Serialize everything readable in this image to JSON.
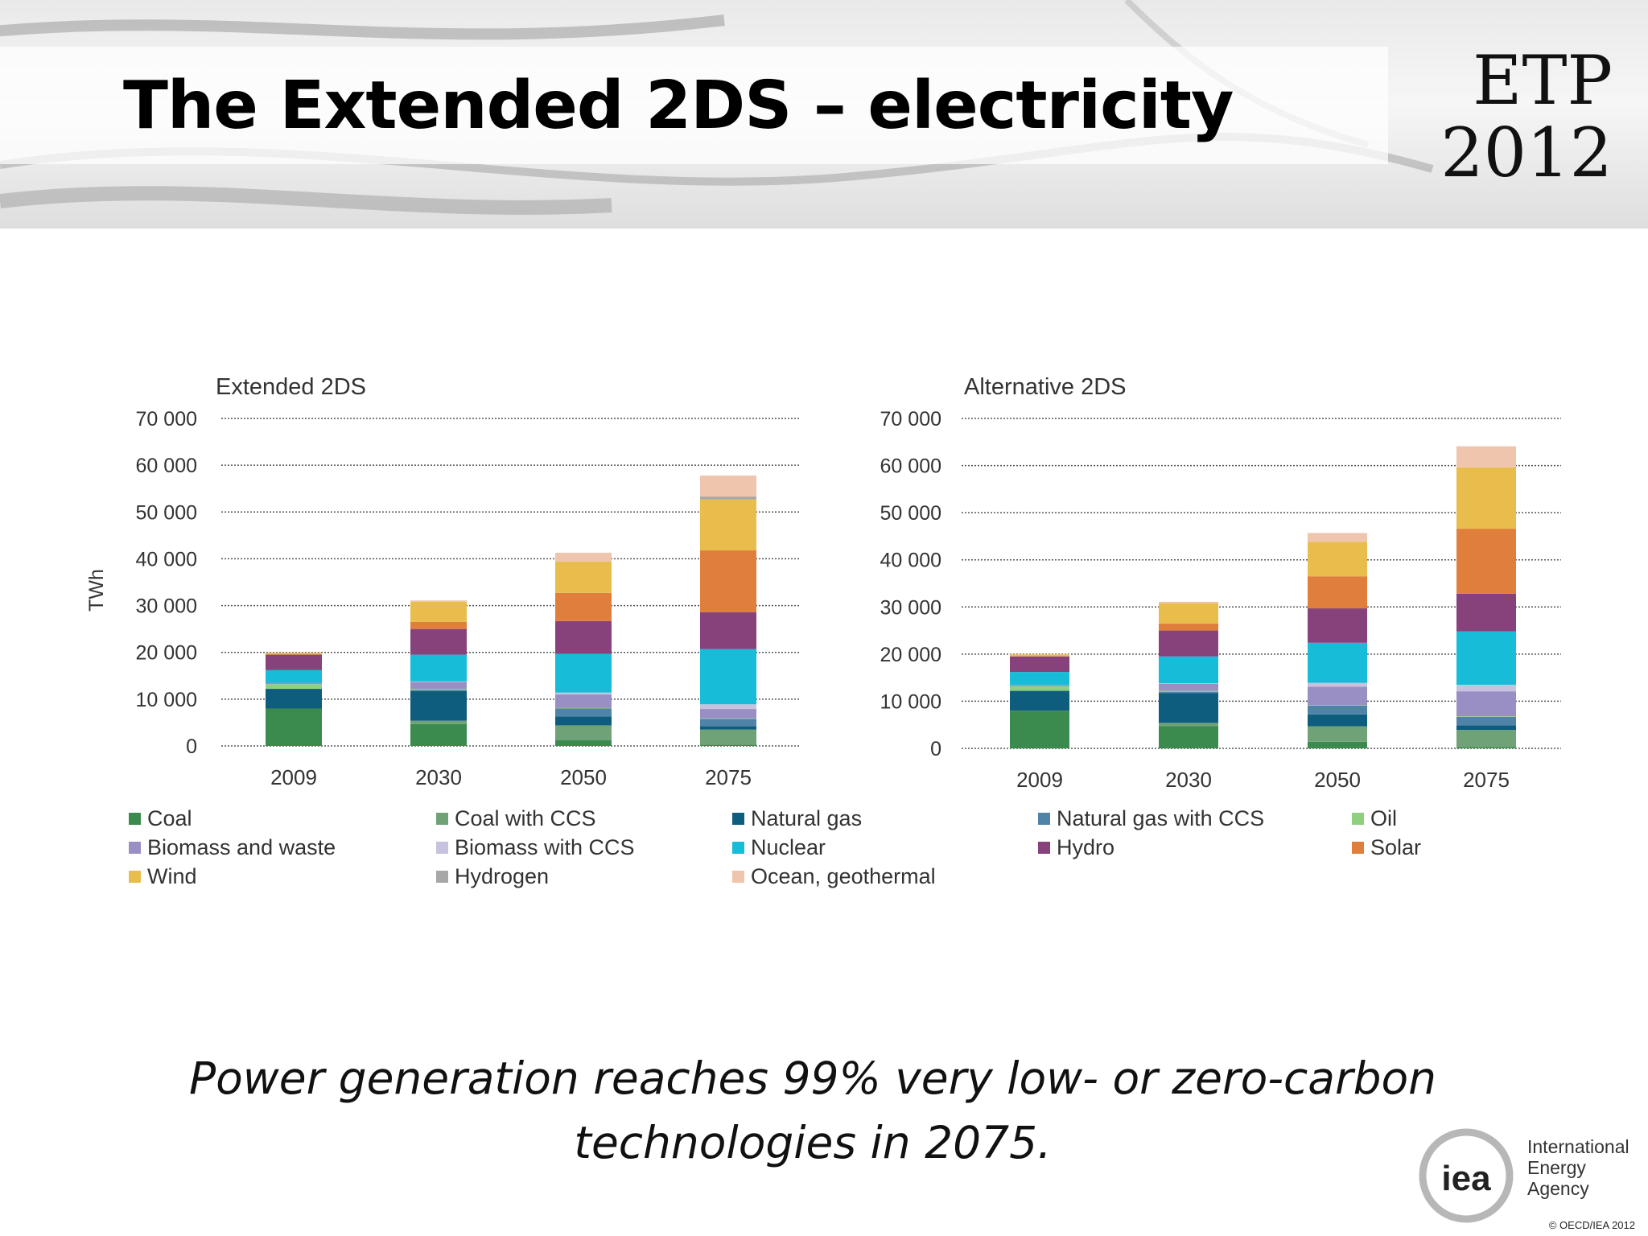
{
  "slide": {
    "title": "The Extended 2DS – electricity",
    "etp_line1": "ETP",
    "etp_line2": "2012",
    "caption_line1": "Power generation reaches 99% very low- or zero-carbon",
    "caption_line2": "technologies in 2075.",
    "iea_logo_text": "iea",
    "iea_name_line1": "International",
    "iea_name_line2": "Energy Agency",
    "copyright": "© OECD/IEA 2012"
  },
  "chart_data": [
    {
      "type": "bar",
      "stacked": true,
      "title": "Extended 2DS",
      "xlabel": "",
      "ylabel": "TWh",
      "ylim": [
        0,
        70000
      ],
      "yticks": [
        0,
        10000,
        20000,
        30000,
        40000,
        50000,
        60000,
        70000
      ],
      "ytick_labels": [
        "0",
        "10 000",
        "20 000",
        "30 000",
        "40 000",
        "50 000",
        "60 000",
        "70 000"
      ],
      "grid": true,
      "categories": [
        "2009",
        "2030",
        "2050",
        "2075"
      ],
      "series": [
        {
          "name": "Coal",
          "color": "#3c8b4e",
          "values": [
            8000,
            4700,
            1200,
            300
          ]
        },
        {
          "name": "Coal with CCS",
          "color": "#6fa377",
          "values": [
            0,
            700,
            3200,
            3200
          ]
        },
        {
          "name": "Natural gas",
          "color": "#0e5c7e",
          "values": [
            4200,
            6300,
            1900,
            700
          ]
        },
        {
          "name": "Natural gas with CCS",
          "color": "#4f84a8",
          "values": [
            0,
            300,
            1700,
            1600
          ]
        },
        {
          "name": "Oil",
          "color": "#8fd07f",
          "values": [
            1000,
            200,
            100,
            100
          ]
        },
        {
          "name": "Biomass and waste",
          "color": "#9a8fc4",
          "values": [
            300,
            1500,
            2900,
            2000
          ]
        },
        {
          "name": "Biomass with CCS",
          "color": "#c7c3de",
          "values": [
            0,
            100,
            400,
            1000
          ]
        },
        {
          "name": "Nuclear",
          "color": "#16bcd8",
          "values": [
            2700,
            5700,
            8300,
            11800
          ]
        },
        {
          "name": "Hydro",
          "color": "#87427b",
          "values": [
            3300,
            5500,
            7000,
            7900
          ]
        },
        {
          "name": "Solar",
          "color": "#df7f3b",
          "values": [
            100,
            1500,
            6000,
            13200
          ]
        },
        {
          "name": "Wind",
          "color": "#e9bd4b",
          "values": [
            300,
            4300,
            6700,
            10900
          ]
        },
        {
          "name": "Hydrogen",
          "color": "#a7a7a7",
          "values": [
            0,
            0,
            0,
            600
          ]
        },
        {
          "name": "Ocean, geothermal",
          "color": "#efc5ae",
          "values": [
            100,
            300,
            1900,
            4500
          ]
        }
      ]
    },
    {
      "type": "bar",
      "stacked": true,
      "title": "Alternative 2DS",
      "xlabel": "",
      "ylabel": "",
      "ylim": [
        0,
        70000
      ],
      "yticks": [
        0,
        10000,
        20000,
        30000,
        40000,
        50000,
        60000,
        70000
      ],
      "ytick_labels": [
        "0",
        "10 000",
        "20 000",
        "30 000",
        "40 000",
        "50 000",
        "60 000",
        "70 000"
      ],
      "grid": true,
      "categories": [
        "2009",
        "2030",
        "2050",
        "2075"
      ],
      "series": [
        {
          "name": "Coal",
          "color": "#3c8b4e",
          "values": [
            8000,
            4700,
            1400,
            300
          ]
        },
        {
          "name": "Coal with CCS",
          "color": "#6fa377",
          "values": [
            0,
            700,
            3300,
            3600
          ]
        },
        {
          "name": "Natural gas",
          "color": "#0e5c7e",
          "values": [
            4200,
            6300,
            2500,
            1000
          ]
        },
        {
          "name": "Natural gas with CCS",
          "color": "#4f84a8",
          "values": [
            0,
            300,
            1900,
            1800
          ]
        },
        {
          "name": "Oil",
          "color": "#8fd07f",
          "values": [
            1000,
            200,
            100,
            100
          ]
        },
        {
          "name": "Biomass and waste",
          "color": "#9a8fc4",
          "values": [
            300,
            1500,
            3900,
            5300
          ]
        },
        {
          "name": "Biomass with CCS",
          "color": "#c7c3de",
          "values": [
            0,
            100,
            800,
            1400
          ]
        },
        {
          "name": "Nuclear",
          "color": "#16bcd8",
          "values": [
            2700,
            5700,
            8500,
            11300
          ]
        },
        {
          "name": "Hydro",
          "color": "#87427b",
          "values": [
            3300,
            5500,
            7300,
            8000
          ]
        },
        {
          "name": "Solar",
          "color": "#df7f3b",
          "values": [
            100,
            1500,
            6800,
            13800
          ]
        },
        {
          "name": "Wind",
          "color": "#e9bd4b",
          "values": [
            300,
            4300,
            7300,
            13000
          ]
        },
        {
          "name": "Hydrogen",
          "color": "#a7a7a7",
          "values": [
            0,
            0,
            0,
            0
          ]
        },
        {
          "name": "Ocean, geothermal",
          "color": "#efc5ae",
          "values": [
            100,
            300,
            1900,
            4500
          ]
        }
      ]
    }
  ]
}
